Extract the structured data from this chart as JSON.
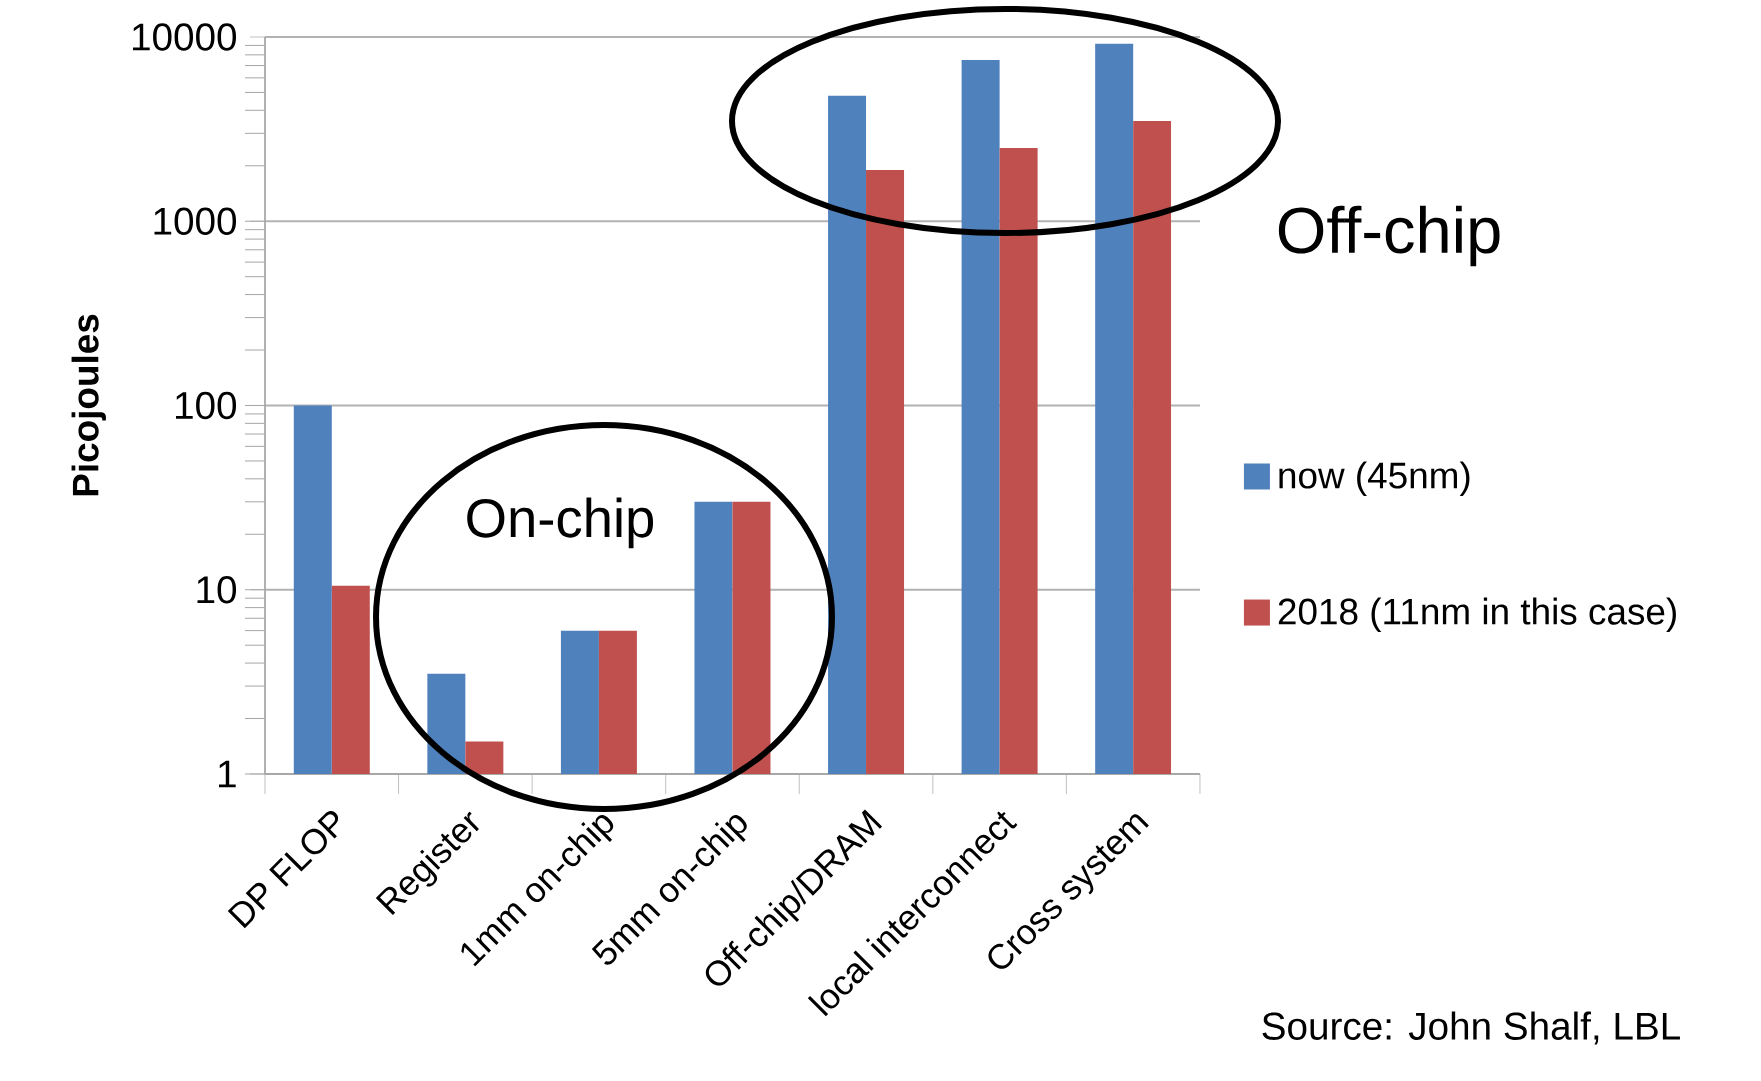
{
  "chart_data": {
    "type": "bar",
    "ylabel": "Picojoules",
    "categories": [
      "DP FLOP",
      "Register",
      "1mm on-chip",
      "5mm on-chip",
      "Off-chip/DRAM",
      "local interconnect",
      "Cross system"
    ],
    "series": [
      {
        "name": "now (45nm)",
        "color": "#4f81bd",
        "values": [
          100,
          3.5,
          6,
          30,
          4800,
          7500,
          9200
        ]
      },
      {
        "name": "2018 (11nm in this case)",
        "color": "#c0504d",
        "values": [
          10.5,
          1.5,
          6,
          30,
          1900,
          2500,
          3500
        ]
      }
    ],
    "log": true,
    "ylim": [
      1,
      10000
    ],
    "yticks": [
      1,
      10,
      100,
      1000,
      10000
    ],
    "grid": "y",
    "legend": "right",
    "annotations": [
      "On-chip",
      "Off-chip",
      "Source: John Shalf, LBL"
    ]
  }
}
